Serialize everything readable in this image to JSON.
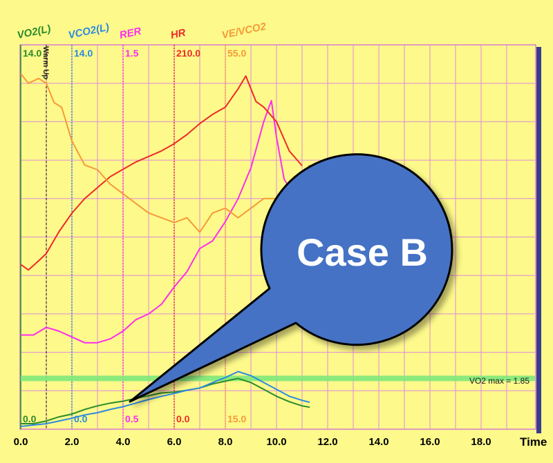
{
  "chart_data": {
    "type": "line",
    "x_axis": {
      "label": "Time",
      "range": [
        0,
        20
      ],
      "ticks": [
        "0.0",
        "2.0",
        "4.0",
        "6.0",
        "8.0",
        "10.0",
        "12.0",
        "14.0",
        "16.0",
        "18.0"
      ]
    },
    "grid": true,
    "annotations": {
      "warm_up_label": "Warm Up",
      "warm_up_time": 1.0,
      "vo2_max_label": "VO2 max = 1.85",
      "callout_text": "Case B"
    },
    "series": [
      {
        "name": "VO2(L)",
        "color": "#2a8a2a",
        "axis_time": 0.0,
        "top_value": "14.0",
        "bottom_value": "0.0",
        "ylim": [
          0,
          14
        ],
        "points": [
          [
            0,
            0.2
          ],
          [
            0.5,
            0.2
          ],
          [
            1,
            0.3
          ],
          [
            1.5,
            0.45
          ],
          [
            2,
            0.55
          ],
          [
            2.5,
            0.72
          ],
          [
            3,
            0.85
          ],
          [
            3.5,
            0.95
          ],
          [
            4,
            1.02
          ],
          [
            4.5,
            1.12
          ],
          [
            5,
            1.22
          ],
          [
            5.5,
            1.32
          ],
          [
            6,
            1.35
          ],
          [
            6.5,
            1.42
          ],
          [
            7,
            1.5
          ],
          [
            7.5,
            1.65
          ],
          [
            8,
            1.75
          ],
          [
            8.5,
            1.85
          ],
          [
            9,
            1.7
          ],
          [
            9.5,
            1.45
          ],
          [
            10,
            1.2
          ],
          [
            10.5,
            1.0
          ],
          [
            11,
            0.85
          ],
          [
            11.3,
            0.8
          ]
        ]
      },
      {
        "name": "VCO2(L)",
        "color": "#2b8ae0",
        "axis_time": 2.0,
        "top_value": "14.0",
        "bottom_value": "0.0",
        "ylim": [
          0,
          14
        ],
        "points": [
          [
            0,
            0.1
          ],
          [
            0.5,
            0.15
          ],
          [
            1,
            0.2
          ],
          [
            1.5,
            0.3
          ],
          [
            2,
            0.4
          ],
          [
            2.5,
            0.52
          ],
          [
            3,
            0.6
          ],
          [
            3.5,
            0.72
          ],
          [
            4,
            0.82
          ],
          [
            4.5,
            0.95
          ],
          [
            5,
            1.08
          ],
          [
            5.5,
            1.2
          ],
          [
            6,
            1.3
          ],
          [
            6.5,
            1.42
          ],
          [
            7,
            1.5
          ],
          [
            7.5,
            1.7
          ],
          [
            8,
            1.88
          ],
          [
            8.5,
            2.1
          ],
          [
            9,
            1.95
          ],
          [
            9.5,
            1.7
          ],
          [
            10,
            1.45
          ],
          [
            10.5,
            1.2
          ],
          [
            11,
            1.05
          ],
          [
            11.3,
            0.98
          ]
        ]
      },
      {
        "name": "RER",
        "color": "#ff2cf0",
        "axis_time": 4.0,
        "top_value": "1.5",
        "bottom_value": "0.5",
        "ylim": [
          0.5,
          1.5
        ],
        "points": [
          [
            0,
            0.745
          ],
          [
            0.5,
            0.745
          ],
          [
            1,
            0.765
          ],
          [
            1.5,
            0.755
          ],
          [
            2,
            0.74
          ],
          [
            2.5,
            0.725
          ],
          [
            3,
            0.725
          ],
          [
            3.5,
            0.735
          ],
          [
            4,
            0.755
          ],
          [
            4.5,
            0.785
          ],
          [
            5,
            0.8
          ],
          [
            5.5,
            0.825
          ],
          [
            6,
            0.87
          ],
          [
            6.5,
            0.91
          ],
          [
            7,
            0.97
          ],
          [
            7.5,
            0.99
          ],
          [
            8,
            1.04
          ],
          [
            8.5,
            1.1
          ],
          [
            9,
            1.18
          ],
          [
            9.5,
            1.3
          ],
          [
            9.8,
            1.355
          ],
          [
            10,
            1.26
          ],
          [
            10.3,
            1.15
          ],
          [
            10.6,
            1.12
          ]
        ]
      },
      {
        "name": "HR",
        "color": "#ee2a2a",
        "axis_time": 6.0,
        "top_value": "210.0",
        "bottom_value": "0.0",
        "ylim": [
          0,
          210
        ],
        "points": [
          [
            0,
            90
          ],
          [
            0.3,
            87
          ],
          [
            0.7,
            92
          ],
          [
            1,
            96
          ],
          [
            1.5,
            108
          ],
          [
            2,
            118
          ],
          [
            2.5,
            126
          ],
          [
            3,
            132
          ],
          [
            3.5,
            138
          ],
          [
            4,
            142
          ],
          [
            4.5,
            146
          ],
          [
            5,
            149
          ],
          [
            5.5,
            152
          ],
          [
            6,
            156
          ],
          [
            6.5,
            161
          ],
          [
            7,
            167
          ],
          [
            7.5,
            172
          ],
          [
            8,
            176
          ],
          [
            8.5,
            186
          ],
          [
            8.8,
            193
          ],
          [
            9.2,
            179
          ],
          [
            9.5,
            176
          ],
          [
            10,
            168
          ],
          [
            10.5,
            152
          ],
          [
            11,
            144
          ]
        ]
      },
      {
        "name": "VE/VCO2",
        "color": "#f59a3a",
        "axis_time": 8.0,
        "top_value": "55.0",
        "bottom_value": "15.0",
        "ylim": [
          15,
          55
        ],
        "points": [
          [
            0,
            52
          ],
          [
            0.3,
            51
          ],
          [
            0.7,
            51.5
          ],
          [
            1,
            51
          ],
          [
            1.3,
            49
          ],
          [
            1.6,
            48.5
          ],
          [
            2,
            45
          ],
          [
            2.5,
            42.5
          ],
          [
            3,
            42
          ],
          [
            3.5,
            40.5
          ],
          [
            4,
            39.5
          ],
          [
            4.5,
            38.5
          ],
          [
            5,
            37.5
          ],
          [
            5.5,
            37
          ],
          [
            6,
            36.5
          ],
          [
            6.5,
            37
          ],
          [
            7,
            35.5
          ],
          [
            7.5,
            37.5
          ],
          [
            8,
            38
          ],
          [
            8.5,
            37
          ],
          [
            9,
            38
          ],
          [
            9.5,
            39
          ],
          [
            10,
            39
          ],
          [
            10.5,
            40
          ],
          [
            11,
            41.5
          ],
          [
            11.3,
            42.5
          ]
        ]
      }
    ]
  }
}
